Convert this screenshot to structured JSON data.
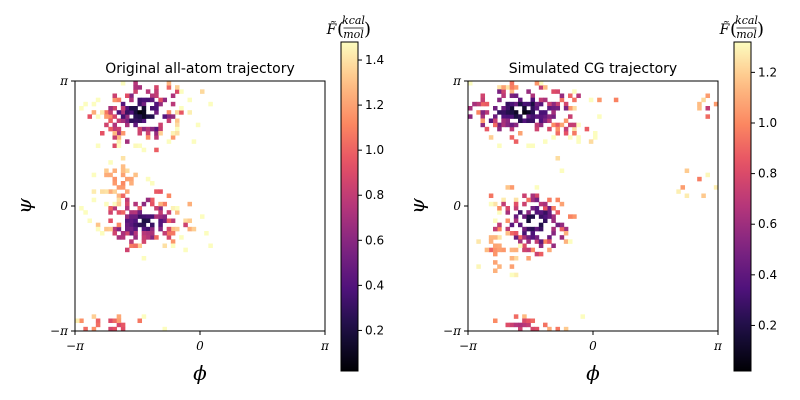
{
  "chart_data": [
    {
      "type": "heatmap",
      "title": "Original all-atom trajectory",
      "xlabel": "ϕ",
      "ylabel": "ψ",
      "xlim": [
        -3.1416,
        3.1416
      ],
      "ylim": [
        -3.1416,
        3.1416
      ],
      "xtick_labels": [
        "−π",
        "0",
        "π"
      ],
      "ytick_labels": [
        "−π",
        "0",
        "π"
      ],
      "colorbar": {
        "label": "F̃(kcal/mol)",
        "label_main": "F̃",
        "label_num": "kcal",
        "label_den": "mol",
        "range": [
          0.02,
          1.48
        ],
        "ticks": [
          0.2,
          0.4,
          0.6,
          0.8,
          1.0,
          1.2,
          1.4
        ],
        "tick_labels": [
          "0.2",
          "0.4",
          "0.6",
          "0.8",
          "1.0",
          "1.2",
          "1.4"
        ],
        "colormap": "magma"
      },
      "clusters": [
        {
          "phi": -1.5,
          "psi": 2.35,
          "sphi": 0.55,
          "spsi": 0.42,
          "fmin": 0.02,
          "count": 190
        },
        {
          "phi": -1.4,
          "psi": -0.4,
          "sphi": 0.55,
          "spsi": 0.35,
          "fmin": 0.15,
          "count": 150
        },
        {
          "phi": -2.0,
          "psi": 0.6,
          "sphi": 0.3,
          "spsi": 0.25,
          "fmin": 1.1,
          "count": 40
        },
        {
          "phi": -2.2,
          "psi": -3.0,
          "sphi": 0.6,
          "spsi": 0.15,
          "fmin": 0.8,
          "count": 30
        }
      ],
      "grid": false
    },
    {
      "type": "heatmap",
      "title": "Simulated CG trajectory",
      "xlabel": "ϕ",
      "ylabel": "ψ",
      "xlim": [
        -3.1416,
        3.1416
      ],
      "ylim": [
        -3.1416,
        3.1416
      ],
      "xtick_labels": [
        "−π",
        "0",
        "π"
      ],
      "ytick_labels": [
        "−π",
        "0",
        "π"
      ],
      "colorbar": {
        "label": "F̃(kcal/mol)",
        "label_main": "F̃",
        "label_num": "kcal",
        "label_den": "mol",
        "range": [
          0.02,
          1.32
        ],
        "ticks": [
          0.2,
          0.4,
          0.6,
          0.8,
          1.0,
          1.2
        ],
        "tick_labels": [
          "0.2",
          "0.4",
          "0.6",
          "0.8",
          "1.0",
          "1.2"
        ],
        "colormap": "magma"
      },
      "clusters": [
        {
          "phi": -1.8,
          "psi": 2.4,
          "sphi": 0.85,
          "spsi": 0.38,
          "fmin": 0.02,
          "count": 230
        },
        {
          "phi": -1.5,
          "psi": -0.4,
          "sphi": 0.5,
          "spsi": 0.45,
          "fmin": 0.05,
          "count": 150
        },
        {
          "phi": -2.4,
          "psi": -1.2,
          "sphi": 0.35,
          "spsi": 0.3,
          "fmin": 1.0,
          "count": 25
        },
        {
          "phi": -1.8,
          "psi": -3.0,
          "sphi": 0.6,
          "spsi": 0.15,
          "fmin": 0.6,
          "count": 35
        },
        {
          "phi": 2.9,
          "psi": 2.5,
          "sphi": 0.15,
          "spsi": 0.2,
          "fmin": 0.6,
          "count": 8
        },
        {
          "phi": 2.5,
          "psi": 0.6,
          "sphi": 0.3,
          "spsi": 0.15,
          "fmin": 0.9,
          "count": 8
        }
      ],
      "grid": false
    }
  ]
}
